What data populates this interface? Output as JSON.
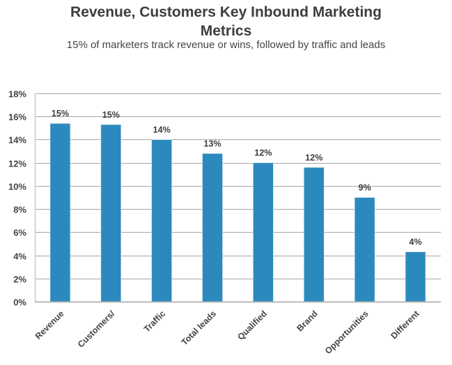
{
  "chart_data": {
    "type": "bar",
    "title": "Revenue, Customers Key Inbound Marketing Metrics",
    "title_lines": [
      "Revenue, Customers Key Inbound Marketing",
      "Metrics"
    ],
    "subtitle": "15% of marketers track revenue or wins, followed by traffic and leads",
    "categories": [
      "Revenue",
      "Customers/",
      "Traffic",
      "Total leads",
      "Qualified",
      "Brand",
      "Opportunities",
      "Different"
    ],
    "values": [
      15.4,
      15.3,
      14.0,
      12.8,
      12.0,
      11.6,
      9.0,
      4.3
    ],
    "data_labels": [
      "15%",
      "15%",
      "14%",
      "13%",
      "12%",
      "12%",
      "9%",
      "4%"
    ],
    "xlabel": "",
    "ylabel": "",
    "ylim": [
      0,
      18
    ],
    "yticks": [
      0,
      2,
      4,
      6,
      8,
      10,
      12,
      14,
      16,
      18
    ],
    "ytick_labels": [
      "0%",
      "2%",
      "4%",
      "6%",
      "8%",
      "10%",
      "12%",
      "14%",
      "16%",
      "18%"
    ],
    "grid": true,
    "legend": "none",
    "bar_color": "#2b89bd",
    "grid_color": "#a6a6a6"
  }
}
